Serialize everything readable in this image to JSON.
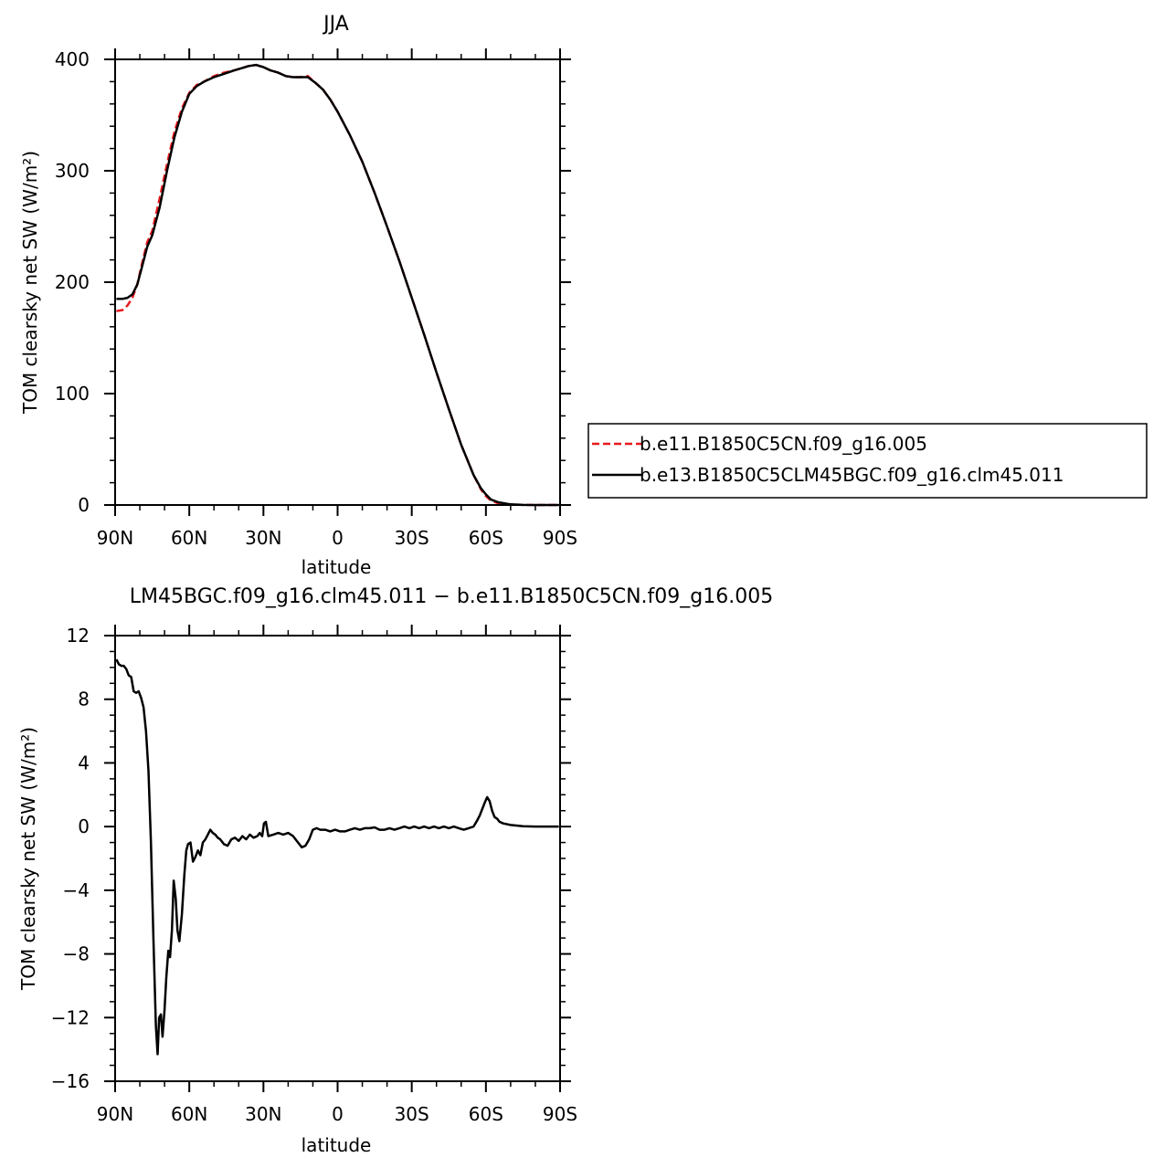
{
  "colors": {
    "series1": "#e8191c",
    "series2": "#000000",
    "axis": "#000000"
  },
  "chart_data": [
    {
      "type": "line",
      "title": "JJA",
      "xlabel": "latitude",
      "ylabel": "TOM clearsky net SW (W/m²)",
      "xlim": [
        90,
        -90
      ],
      "ylim": [
        0,
        400
      ],
      "x_ticks": [
        {
          "value": 90,
          "label": "90N"
        },
        {
          "value": 60,
          "label": "60N"
        },
        {
          "value": 30,
          "label": "30N"
        },
        {
          "value": 0,
          "label": "0"
        },
        {
          "value": -30,
          "label": "30S"
        },
        {
          "value": -60,
          "label": "60S"
        },
        {
          "value": -90,
          "label": "90S"
        }
      ],
      "y_ticks": [
        {
          "value": 0,
          "label": "0"
        },
        {
          "value": 100,
          "label": "100"
        },
        {
          "value": 200,
          "label": "200"
        },
        {
          "value": 300,
          "label": "300"
        },
        {
          "value": 400,
          "label": "400"
        }
      ],
      "legend_position": "right",
      "series": [
        {
          "name": "b.e11.B1850C5CN.f09_g16.005",
          "style": "dashed",
          "color": "#e8191c",
          "x": [
            89.5,
            87,
            85,
            83,
            81,
            79,
            77,
            75,
            72,
            69,
            66,
            63,
            60,
            57,
            54,
            50,
            46,
            42,
            39,
            36,
            33,
            30,
            27,
            24,
            21,
            18,
            15,
            12,
            9,
            6,
            3,
            0,
            -5,
            -10,
            -15,
            -20,
            -25,
            -30,
            -35,
            -40,
            -45,
            -50,
            -55,
            -58,
            -60,
            -62,
            -65,
            -70,
            -75,
            -80,
            -85,
            -89.5
          ],
          "y": [
            174,
            175,
            179,
            186,
            198,
            218,
            236,
            246,
            275,
            306,
            335,
            356,
            370,
            377,
            380,
            385,
            388,
            390,
            392,
            394,
            395,
            393,
            390,
            388,
            385,
            384,
            384,
            385,
            379,
            373,
            364,
            353,
            332,
            308,
            280,
            250,
            219,
            186,
            153,
            119,
            86,
            54,
            27,
            14,
            8,
            4,
            1.5,
            0.4,
            0.1,
            0,
            0,
            0
          ]
        },
        {
          "name": "b.e13.B1850C5CLM45BGC.f09_g16.clm45.011",
          "style": "solid",
          "color": "#000000",
          "x": [
            89.5,
            87,
            85,
            83,
            81,
            79,
            77,
            75,
            72,
            69,
            66,
            63,
            60,
            57,
            54,
            50,
            46,
            42,
            39,
            36,
            33,
            30,
            27,
            24,
            21,
            18,
            15,
            12,
            9,
            6,
            3,
            0,
            -5,
            -10,
            -15,
            -20,
            -25,
            -30,
            -35,
            -40,
            -45,
            -50,
            -55,
            -58,
            -60,
            -62,
            -65,
            -70,
            -75,
            -80,
            -85,
            -89.5
          ],
          "y": [
            185,
            185,
            186,
            189,
            198,
            215,
            232,
            242,
            267,
            300,
            330,
            353,
            369,
            376,
            380,
            384,
            387,
            390,
            392,
            394,
            395,
            393,
            390,
            388,
            385,
            384,
            384,
            384,
            379,
            373,
            364,
            353,
            332,
            308,
            280,
            250,
            219,
            186,
            153,
            119,
            86,
            54,
            27,
            15,
            9.5,
            5,
            2.5,
            0.6,
            0.1,
            0,
            0,
            0
          ]
        }
      ]
    },
    {
      "type": "line",
      "title": "LM45BGC.f09_g16.clm45.011 − b.e11.B1850C5CN.f09_g16.005",
      "xlabel": "latitude",
      "ylabel": "TOM clearsky net SW (W/m²)",
      "xlim": [
        90,
        -90
      ],
      "ylim": [
        -16,
        12
      ],
      "x_ticks": [
        {
          "value": 90,
          "label": "90N"
        },
        {
          "value": 60,
          "label": "60N"
        },
        {
          "value": 30,
          "label": "30N"
        },
        {
          "value": 0,
          "label": "0"
        },
        {
          "value": -30,
          "label": "30S"
        },
        {
          "value": -60,
          "label": "60S"
        },
        {
          "value": -90,
          "label": "90S"
        }
      ],
      "y_ticks": [
        {
          "value": -16,
          "label": "−16"
        },
        {
          "value": -12,
          "label": "−12"
        },
        {
          "value": -8,
          "label": "−8"
        },
        {
          "value": -4,
          "label": "−4"
        },
        {
          "value": 0,
          "label": "0"
        },
        {
          "value": 4,
          "label": "4"
        },
        {
          "value": 8,
          "label": "8"
        },
        {
          "value": 12,
          "label": "12"
        }
      ],
      "series": [
        {
          "style": "solid",
          "color": "#000000",
          "x": [
            89.5,
            88.5,
            87.5,
            86.5,
            85.5,
            84.5,
            83.5,
            82.5,
            81.5,
            80.5,
            79.5,
            78.5,
            77.5,
            76.5,
            75.5,
            74.5,
            73.5,
            72.8,
            72.2,
            71.5,
            70.8,
            70,
            69.3,
            68.5,
            67.8,
            67,
            66.3,
            65.5,
            64.8,
            64,
            63,
            62,
            61.2,
            60.5,
            59.5,
            58.5,
            57.5,
            56.5,
            55.5,
            54.5,
            53.5,
            52.5,
            51.5,
            50.5,
            49.5,
            48.5,
            47.5,
            46,
            44.5,
            43,
            41.5,
            40,
            38.5,
            37,
            35.5,
            34,
            32.5,
            31.5,
            30.5,
            29.8,
            29,
            28,
            26,
            24,
            22,
            20,
            18,
            16,
            14.5,
            13,
            11.5,
            10,
            8.5,
            7,
            5,
            3,
            1,
            -1,
            -3,
            -5,
            -7,
            -9,
            -11,
            -13,
            -15,
            -17,
            -19,
            -21,
            -23,
            -25,
            -27,
            -29,
            -31,
            -33,
            -35,
            -37,
            -39,
            -41,
            -43,
            -45,
            -47,
            -49,
            -51,
            -53,
            -55,
            -56.5,
            -57.5,
            -58.5,
            -59.5,
            -60.5,
            -61.5,
            -62.5,
            -63.5,
            -64.5,
            -65.5,
            -67,
            -70,
            -75,
            -80,
            -85,
            -89.5
          ],
          "y": [
            10.5,
            10.2,
            10.1,
            10.1,
            9.9,
            9.5,
            9.4,
            8.5,
            8.4,
            8.5,
            8.1,
            7.5,
            6.0,
            3.5,
            -1.0,
            -7.0,
            -12.5,
            -14.3,
            -12.0,
            -11.8,
            -13.2,
            -11.5,
            -9.5,
            -7.8,
            -8.2,
            -6.5,
            -3.4,
            -4.5,
            -6.5,
            -7.2,
            -5.5,
            -3.0,
            -1.5,
            -1.1,
            -1.0,
            -2.2,
            -1.9,
            -1.5,
            -1.8,
            -1.0,
            -0.8,
            -0.5,
            -0.2,
            -0.4,
            -0.5,
            -0.7,
            -0.8,
            -1.1,
            -1.2,
            -0.8,
            -0.7,
            -0.9,
            -0.6,
            -0.8,
            -0.5,
            -0.7,
            -0.6,
            -0.4,
            -0.6,
            0.2,
            0.3,
            -0.6,
            -0.5,
            -0.4,
            -0.5,
            -0.4,
            -0.6,
            -1.0,
            -1.3,
            -1.2,
            -0.8,
            -0.2,
            -0.1,
            -0.2,
            -0.2,
            -0.3,
            -0.2,
            -0.3,
            -0.3,
            -0.2,
            -0.1,
            -0.2,
            -0.1,
            -0.1,
            -0.05,
            -0.2,
            -0.2,
            -0.1,
            -0.2,
            -0.1,
            0.0,
            -0.1,
            0.0,
            -0.1,
            0.0,
            -0.1,
            0.0,
            -0.1,
            0.0,
            -0.1,
            0.0,
            -0.1,
            -0.2,
            -0.1,
            0.0,
            0.4,
            0.7,
            1.1,
            1.5,
            1.85,
            1.6,
            1.0,
            0.6,
            0.5,
            0.3,
            0.2,
            0.1,
            0.02,
            0.0,
            0.0,
            0.0
          ]
        }
      ]
    }
  ]
}
